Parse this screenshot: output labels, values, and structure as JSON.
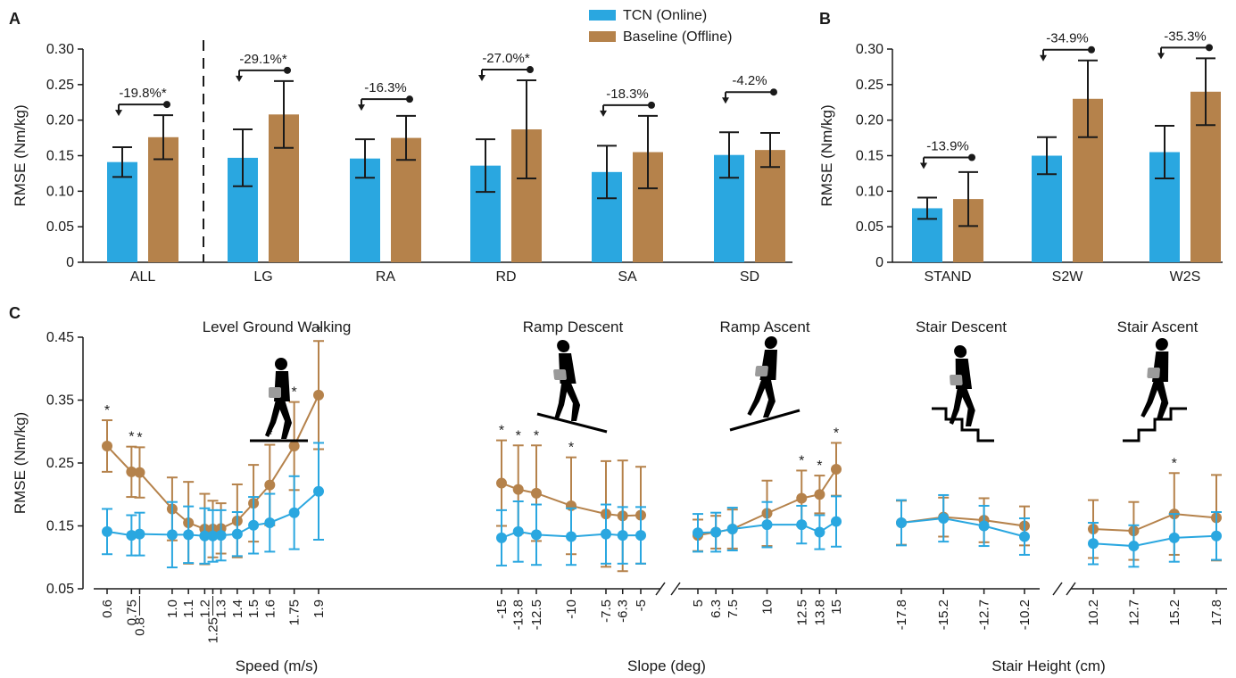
{
  "colors": {
    "online": "#2aa7e0",
    "offline": "#b5824b",
    "axis": "#1a1a1a"
  },
  "legend": {
    "online": "TCN (Online)",
    "offline": "Baseline (Offline)"
  },
  "panel_labels": {
    "a": "A",
    "b": "B",
    "c": "C"
  },
  "chart_data": [
    {
      "panel": "A",
      "type": "bar",
      "ylabel": "RMSE (Nm/kg)",
      "ylim": [
        0,
        0.3
      ],
      "yticks": [
        "0",
        "0.05",
        "0.10",
        "0.15",
        "0.20",
        "0.25",
        "0.30"
      ],
      "categories": [
        "ALL",
        "LG",
        "RA",
        "RD",
        "SA",
        "SD"
      ],
      "series": [
        {
          "name": "TCN (Online)",
          "values": [
            0.141,
            0.147,
            0.146,
            0.136,
            0.127,
            0.151
          ],
          "err": [
            0.021,
            0.04,
            0.027,
            0.037,
            0.037,
            0.032
          ]
        },
        {
          "name": "Baseline (Offline)",
          "values": [
            0.176,
            0.208,
            0.175,
            0.187,
            0.155,
            0.158
          ],
          "err": [
            0.031,
            0.047,
            0.031,
            0.069,
            0.051,
            0.024
          ]
        }
      ],
      "annotations": [
        "-19.8%*",
        "-29.1%*",
        "-16.3%",
        "-27.0%*",
        "-18.3%",
        "-4.2%"
      ],
      "separator_after": "ALL"
    },
    {
      "panel": "B",
      "type": "bar",
      "ylabel": "RMSE (Nm/kg)",
      "ylim": [
        0,
        0.3
      ],
      "yticks": [
        "0",
        "0.05",
        "0.10",
        "0.15",
        "0.20",
        "0.25",
        "0.30"
      ],
      "categories": [
        "STAND",
        "S2W",
        "W2S"
      ],
      "series": [
        {
          "name": "TCN (Online)",
          "values": [
            0.076,
            0.15,
            0.155
          ],
          "err": [
            0.015,
            0.026,
            0.037
          ]
        },
        {
          "name": "Baseline (Offline)",
          "values": [
            0.089,
            0.23,
            0.24
          ],
          "err": [
            0.038,
            0.054,
            0.047
          ]
        }
      ],
      "annotations": [
        "-13.9%",
        "-34.9%",
        "-35.3%"
      ]
    },
    {
      "panel": "C",
      "type": "line",
      "ylabel": "RMSE (Nm/kg)",
      "ylim": [
        0.05,
        0.45
      ],
      "yticks": [
        "0.05",
        "0.15",
        "0.25",
        "0.35",
        "0.45"
      ],
      "xlabels": [
        "Speed (m/s)",
        "Slope (deg)",
        "Stair Height (cm)"
      ],
      "groups": [
        {
          "title": "Level Ground Walking",
          "x": [
            0.6,
            0.75,
            0.8,
            1.0,
            1.1,
            1.2,
            1.25,
            1.3,
            1.4,
            1.5,
            1.6,
            1.75,
            1.9
          ],
          "xticks": [
            "0.6",
            "0.75",
            "0.8",
            "1.0",
            "1.1",
            "1.2",
            "1.25",
            "1.3",
            "1.4",
            "1.5",
            "1.6",
            "1.75",
            "1.9"
          ],
          "online": [
            0.141,
            0.135,
            0.137,
            0.136,
            0.136,
            0.134,
            0.134,
            0.135,
            0.137,
            0.151,
            0.155,
            0.171,
            0.205
          ],
          "online_err": [
            0.036,
            0.032,
            0.034,
            0.052,
            0.045,
            0.044,
            0.041,
            0.04,
            0.035,
            0.045,
            0.046,
            0.058,
            0.077
          ],
          "offline": [
            0.277,
            0.236,
            0.235,
            0.177,
            0.155,
            0.145,
            0.145,
            0.146,
            0.158,
            0.186,
            0.215,
            0.277,
            0.358
          ],
          "offline_err": [
            0.041,
            0.04,
            0.04,
            0.05,
            0.065,
            0.056,
            0.045,
            0.04,
            0.058,
            0.061,
            0.064,
            0.07,
            0.086
          ],
          "significant": [
            "0.6",
            "0.75",
            "0.8",
            "1.6",
            "1.75",
            "1.9"
          ]
        },
        {
          "title": "Ramp Descent",
          "x": [
            -15,
            -13.8,
            -12.5,
            -10,
            -7.5,
            -6.3,
            -5
          ],
          "xticks": [
            "-15",
            "-13.8",
            "-12.5",
            "-10",
            "-7.5",
            "-6.3",
            "-5"
          ],
          "online": [
            0.131,
            0.141,
            0.136,
            0.133,
            0.137,
            0.135,
            0.135
          ],
          "online_err": [
            0.044,
            0.048,
            0.048,
            0.045,
            0.047,
            0.045,
            0.045
          ],
          "offline": [
            0.218,
            0.208,
            0.202,
            0.182,
            0.169,
            0.166,
            0.167
          ],
          "offline_err": [
            0.068,
            0.07,
            0.076,
            0.077,
            0.084,
            0.088,
            0.077
          ],
          "significant": [
            "-15",
            "-13.8",
            "-12.5",
            "-10"
          ]
        },
        {
          "title": "Ramp Ascent",
          "x": [
            5,
            6.3,
            7.5,
            10,
            12.5,
            13.8,
            15
          ],
          "xticks": [
            "5",
            "6.3",
            "7.5",
            "10",
            "12.5",
            "13.8",
            "15"
          ],
          "online": [
            0.139,
            0.14,
            0.145,
            0.152,
            0.152,
            0.14,
            0.157
          ],
          "online_err": [
            0.03,
            0.031,
            0.034,
            0.036,
            0.03,
            0.027,
            0.04
          ],
          "offline": [
            0.135,
            0.14,
            0.145,
            0.17,
            0.194,
            0.2,
            0.24
          ],
          "offline_err": [
            0.025,
            0.026,
            0.031,
            0.052,
            0.044,
            0.03,
            0.042
          ],
          "significant": [
            "12.5",
            "13.8",
            "15"
          ]
        },
        {
          "title": "Stair Descent",
          "x": [
            -17.8,
            -15.2,
            -12.7,
            -10.2
          ],
          "xticks": [
            "-17.8",
            "-15.2",
            "-12.7",
            "-10.2"
          ],
          "online": [
            0.155,
            0.162,
            0.15,
            0.133
          ],
          "online_err": [
            0.036,
            0.037,
            0.032,
            0.029
          ],
          "offline": [
            0.155,
            0.164,
            0.159,
            0.15
          ],
          "offline_err": [
            0.035,
            0.031,
            0.035,
            0.031
          ],
          "significant": []
        },
        {
          "title": "Stair Ascent",
          "x": [
            10.2,
            12.7,
            15.2,
            17.8
          ],
          "xticks": [
            "10.2",
            "12.7",
            "15.2",
            "17.8"
          ],
          "online": [
            0.122,
            0.118,
            0.131,
            0.134
          ],
          "online_err": [
            0.033,
            0.033,
            0.038,
            0.038
          ],
          "offline": [
            0.145,
            0.142,
            0.169,
            0.163
          ],
          "offline_err": [
            0.046,
            0.046,
            0.065,
            0.068
          ],
          "significant": [
            "15.2"
          ]
        }
      ]
    }
  ]
}
